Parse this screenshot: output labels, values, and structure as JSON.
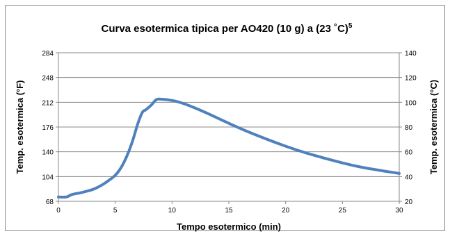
{
  "chart_data": {
    "type": "line",
    "title": "Curva esotermica tipica per AO420 (10 g) a (23 ˚C)",
    "title_superscript": "5",
    "xlabel": "Tempo esotermico (min)",
    "ylabel_left": "Temp. esotermica (°F)",
    "ylabel_right": "Temp. esotermica (°C)",
    "xlim": [
      0,
      30
    ],
    "ylim_left": [
      68,
      284
    ],
    "ylim_right": [
      20,
      140
    ],
    "x_ticks": [
      "0",
      "5",
      "10",
      "15",
      "20",
      "25",
      "30"
    ],
    "y_ticks_left": [
      "68",
      "104",
      "140",
      "176",
      "212",
      "248",
      "284"
    ],
    "y_ticks_right": [
      "20",
      "40",
      "60",
      "80",
      "100",
      "120",
      "140"
    ],
    "grid": "horizontal",
    "legend": "none",
    "line_color": "#4f81bd",
    "series": [
      {
        "axis": "right",
        "x": [
          0,
          0.7,
          1.2,
          2,
          3,
          3.7,
          4.3,
          5,
          5.5,
          6,
          6.5,
          7,
          7.4,
          7.7,
          8.2,
          8.6,
          9,
          10,
          11,
          12,
          13,
          15,
          17,
          20,
          22,
          25,
          27,
          30
        ],
        "y": [
          23.5,
          23.5,
          25.5,
          27,
          29.5,
          32.5,
          36,
          41,
          47,
          56,
          68,
          83,
          92,
          94,
          98,
          102,
          102.5,
          101.5,
          99,
          95.5,
          91.5,
          83,
          75,
          64.5,
          58.5,
          51,
          47,
          42.5
        ]
      }
    ]
  }
}
